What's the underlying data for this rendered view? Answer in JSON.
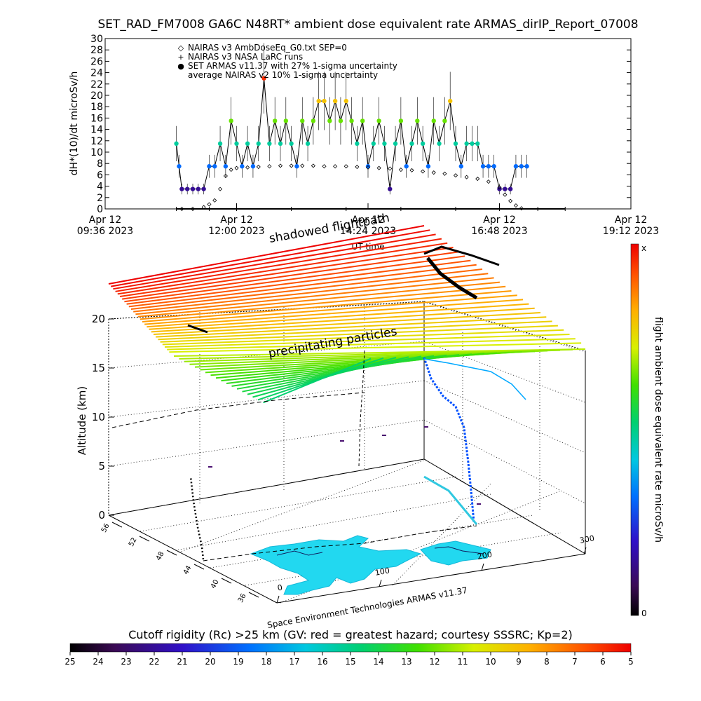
{
  "title": "SET_RAD_FM7008  GA6C N48RT* ambient dose equivalent rate ARMAS_dirIP_Report_07008",
  "top_chart": {
    "ylabel": "dH*(10)/dt microSv/h",
    "ylim": [
      0,
      30
    ],
    "yticks": [
      0,
      2,
      4,
      6,
      8,
      10,
      12,
      14,
      16,
      18,
      20,
      22,
      24,
      26,
      28,
      30
    ],
    "xticks": [
      {
        "line1": "Apr 12",
        "line2": "09:36 2023"
      },
      {
        "line1": "Apr 12",
        "line2": "12:00 2023"
      },
      {
        "line1": "Apr 12",
        "line2": "14:24 2023"
      },
      {
        "line1": "Apr 12",
        "line2": "16:48 2023"
      },
      {
        "line1": "Apr 12",
        "line2": "19:12 2023"
      }
    ],
    "xlabel": "UT time",
    "legend": [
      {
        "symbol": "◇",
        "text": "NAIRAS v3 AmbDoseEq_G0.txt SEP=0"
      },
      {
        "symbol": "+",
        "text": "NAIRAS v3 NASA LaRC runs"
      },
      {
        "symbol": "●",
        "text": "SET ARMAS v11.37 with 27% 1-sigma uncertainty"
      },
      {
        "symbol": "",
        "text": "average NAIRAS v2 10% 1-sigma uncertainty"
      }
    ]
  },
  "chart_data": [
    {
      "type": "scatter",
      "x_unit": "hours UT",
      "xlim": [
        9.6,
        19.2
      ],
      "ylim": [
        0,
        30
      ],
      "series": [
        {
          "name": "SET ARMAS v11.37 with 27% 1-sigma uncertainty",
          "x": [
            10.9,
            10.95,
            11.0,
            11.1,
            11.2,
            11.3,
            11.4,
            11.5,
            11.6,
            11.7,
            11.8,
            11.9,
            12.0,
            12.1,
            12.2,
            12.3,
            12.4,
            12.5,
            12.6,
            12.7,
            12.8,
            12.9,
            13.0,
            13.1,
            13.2,
            13.3,
            13.4,
            13.5,
            13.6,
            13.7,
            13.8,
            13.9,
            14.0,
            14.1,
            14.2,
            14.3,
            14.4,
            14.5,
            14.6,
            14.7,
            14.8,
            14.9,
            15.0,
            15.1,
            15.2,
            15.3,
            15.4,
            15.5,
            15.6,
            15.7,
            15.8,
            15.9,
            16.0,
            16.1,
            16.2,
            16.3,
            16.4,
            16.5,
            16.6,
            16.7,
            16.8,
            16.9,
            17.0,
            17.1,
            17.2,
            17.3
          ],
          "y": [
            11.5,
            7.5,
            3.5,
            3.5,
            3.5,
            3.5,
            3.5,
            7.5,
            7.5,
            11.5,
            7.5,
            15.5,
            11.5,
            7.5,
            11.5,
            7.5,
            11.5,
            23.0,
            11.5,
            15.5,
            11.5,
            15.5,
            11.5,
            7.5,
            15.5,
            11.5,
            15.5,
            19.0,
            19.0,
            15.5,
            19.0,
            15.5,
            19.0,
            15.5,
            11.5,
            15.5,
            7.5,
            11.5,
            15.5,
            11.5,
            3.5,
            11.5,
            15.5,
            7.5,
            11.5,
            15.5,
            11.5,
            7.5,
            15.5,
            11.5,
            15.5,
            19.0,
            11.5,
            7.5,
            11.5,
            11.5,
            11.5,
            7.5,
            7.5,
            7.5,
            3.5,
            3.5,
            3.5,
            7.5,
            7.5,
            7.5
          ]
        },
        {
          "name": "NAIRAS v3 AmbDoseEq_G0.txt SEP=0",
          "x": [
            11.0,
            11.2,
            11.4,
            11.5,
            11.6,
            11.7,
            11.8,
            11.9,
            12.0,
            12.2,
            12.4,
            12.6,
            12.8,
            13.0,
            13.2,
            13.4,
            13.6,
            13.8,
            14.0,
            14.2,
            14.4,
            14.6,
            14.8,
            15.0,
            15.2,
            15.4,
            15.6,
            15.8,
            16.0,
            16.2,
            16.4,
            16.6,
            16.8,
            16.9,
            17.0,
            17.1,
            17.2
          ],
          "y": [
            0,
            0,
            0.3,
            0.8,
            1.5,
            3.5,
            5.8,
            6.9,
            7.2,
            7.3,
            7.4,
            7.5,
            7.6,
            7.6,
            7.6,
            7.6,
            7.5,
            7.5,
            7.5,
            7.4,
            7.3,
            7.2,
            7.1,
            6.9,
            6.8,
            6.6,
            6.4,
            6.2,
            5.9,
            5.6,
            5.3,
            4.8,
            3.8,
            2.5,
            1.4,
            0.6,
            0.1
          ]
        },
        {
          "name": "NAIRAS v3 NASA LaRC runs",
          "x": [
            10.9,
            11.5,
            12.0,
            13.0,
            14.0,
            15.0,
            16.0,
            16.8,
            17.5,
            18.0
          ],
          "y": [
            0,
            0,
            0,
            0,
            0,
            0,
            0,
            0,
            0,
            0
          ]
        }
      ]
    },
    {
      "type": "area",
      "zlabel": "Altitude (km)",
      "zlim": [
        0,
        20
      ],
      "zticks": [
        0,
        5,
        10,
        15,
        20
      ],
      "lat_ticks": [
        36,
        40,
        44,
        48,
        52,
        56
      ],
      "lon_ticks": [
        0,
        100,
        200,
        300
      ],
      "annotations": [
        "shadowed flightpath",
        "precipitating particles"
      ],
      "credit": "Space Environment Technologies ARMAS v11.37"
    }
  ],
  "right_colorbar": {
    "label": "flight ambient dose equivalent rate microSv/h",
    "top_label": "x",
    "bottom_label": "0"
  },
  "bottom_colorbar": {
    "label": "Cutoff rigidity (Rc) >25 km (GV: red = greatest hazard; courtesy SSSRC; Kp=2)",
    "ticks": [
      "25",
      "24",
      "23",
      "22",
      "21",
      "20",
      "19",
      "18",
      "17",
      "16",
      "15",
      "14",
      "13",
      "12",
      "11",
      "10",
      "9",
      "8",
      "7",
      "6",
      "5"
    ]
  }
}
